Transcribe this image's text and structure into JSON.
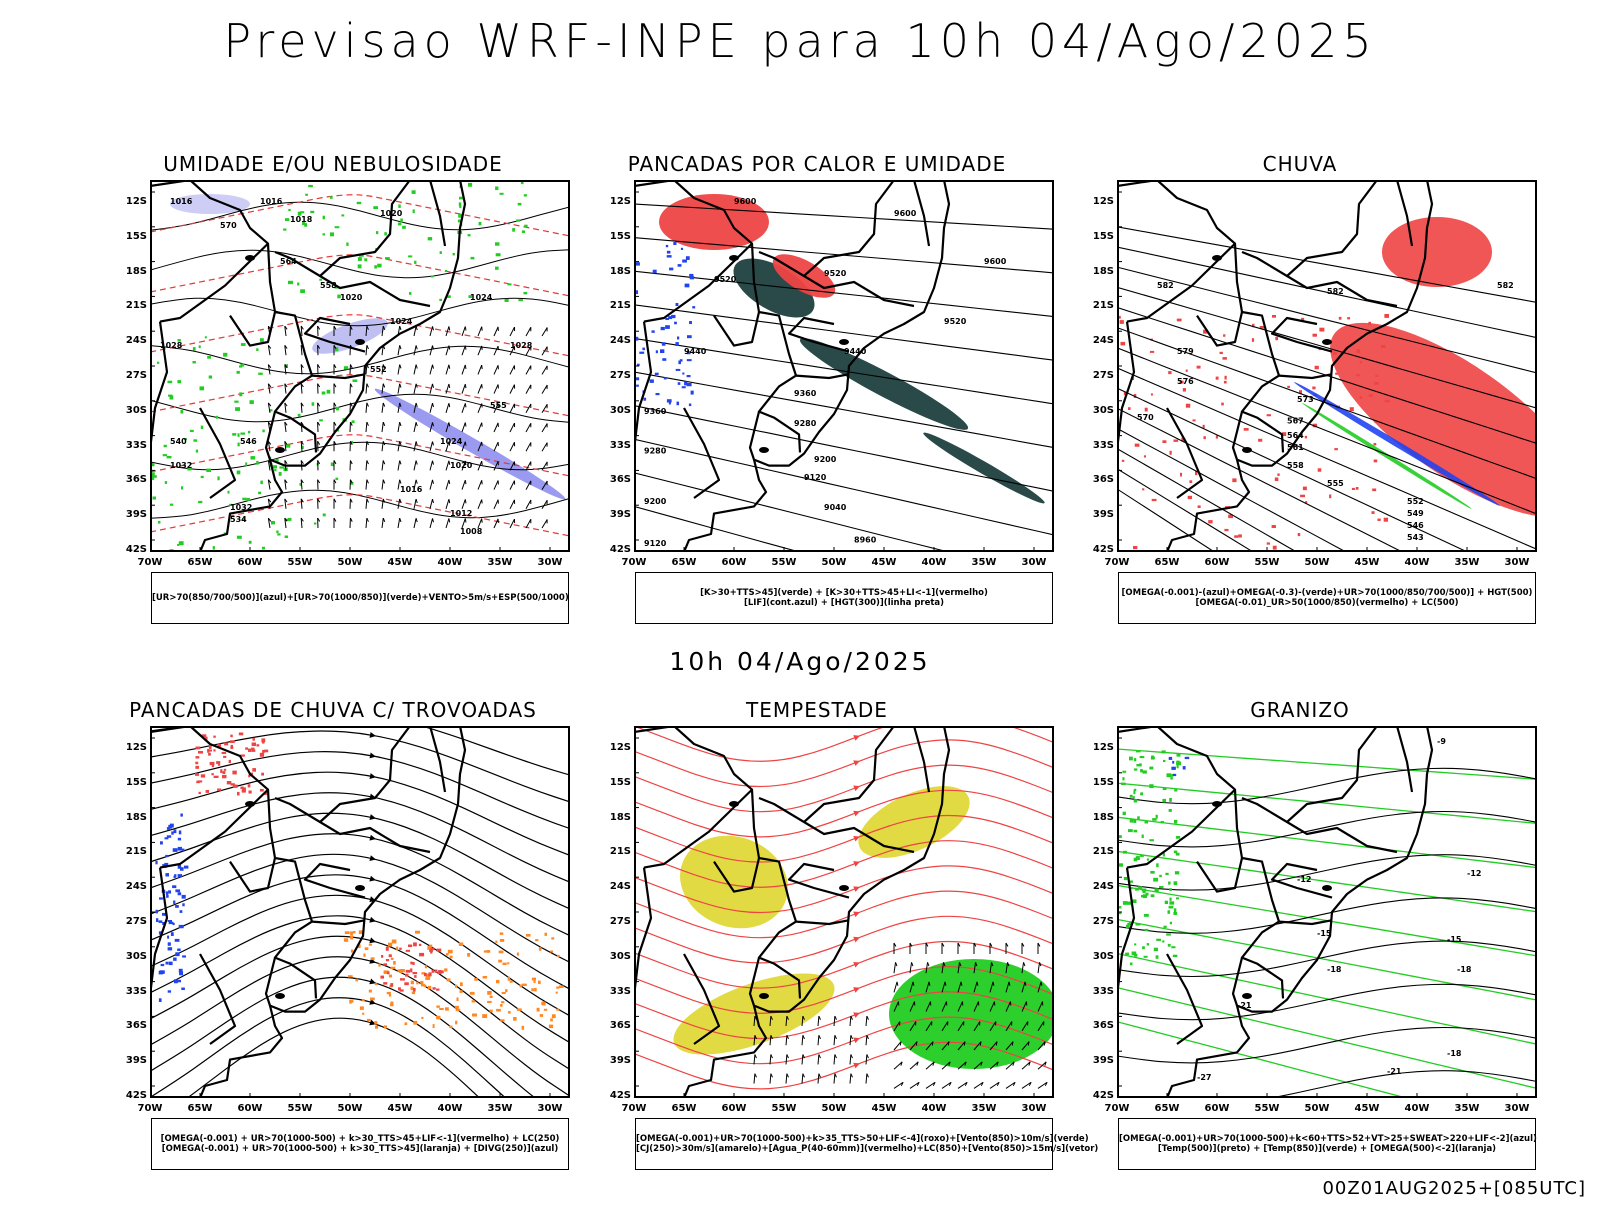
{
  "header": {
    "title": "Previsao WRF-INPE  para 10h 04/Ago/2025",
    "subtitle": "10h 04/Ago/2025",
    "run_label": "00Z01AUG2025+[085UTC]"
  },
  "axes": {
    "lat_labels": [
      "12S",
      "15S",
      "18S",
      "21S",
      "24S",
      "27S",
      "30S",
      "33S",
      "36S",
      "39S",
      "42S"
    ],
    "lon_labels": [
      "70W",
      "65W",
      "60W",
      "55W",
      "50W",
      "45W",
      "40W",
      "35W",
      "30W"
    ]
  },
  "panels": [
    {
      "id": "umidade",
      "title": "UMIDADE E/OU NEBULOSIDADE",
      "legend": [
        "[UR>70(850/700/500)](azul)+[UR>70(1000/850)](verde)+VENTO>5m/s+ESP(500/1000)"
      ],
      "contour_labels": [
        "1016",
        "1016",
        "1018",
        "1020",
        "1020",
        "1024",
        "1024",
        "1028",
        "1028",
        "1032",
        "1032",
        "1024",
        "1020",
        "1016",
        "1012",
        "1008",
        "570",
        "564",
        "558",
        "552",
        "546",
        "540",
        "534",
        "555"
      ]
    },
    {
      "id": "pancadas_calor",
      "title": "PANCADAS POR CALOR E UMIDADE",
      "legend": [
        "[K>30+TTS>45](verde) + [K>30+TTS>45+LI<-1](vermelho)",
        "[LIF](cont.azul) + [HGT(300)](linha preta)"
      ],
      "contour_labels": [
        "9600",
        "9600",
        "9600",
        "9520",
        "9520",
        "9520",
        "9440",
        "9440",
        "9360",
        "9360",
        "9280",
        "9280",
        "9200",
        "9200",
        "9120",
        "9120",
        "9040",
        "8960"
      ]
    },
    {
      "id": "chuva",
      "title": "CHUVA",
      "legend": [
        "[OMEGA(-0.001)-(azul)+OMEGA(-0.3)-(verde)+UR>70(1000/850/700/500)] + HGT(500)",
        "[OMEGA(-0.01)_UR>50(1000/850)(vermelho) + LC(500)"
      ],
      "contour_labels": [
        "582",
        "582",
        "582",
        "579",
        "576",
        "573",
        "570",
        "567",
        "564",
        "561",
        "558",
        "555",
        "552",
        "549",
        "546",
        "543"
      ]
    },
    {
      "id": "pancadas_trovoadas",
      "title": "PANCADAS DE CHUVA C/ TROVOADAS",
      "legend": [
        "[OMEGA(-0.001) + UR>70(1000-500) + k>30_TTS>45+LIF<-1](vermelho) + LC(250)",
        "[OMEGA(-0.001) + UR>70(1000-500) + k>30_TTS>45](laranja) + [DIVG(250)](azul)"
      ],
      "contour_labels": []
    },
    {
      "id": "tempestade",
      "title": "TEMPESTADE",
      "legend": [
        "[OMEGA(-0.001)+UR>70(1000-500)+k>35_TTS>50+LIF<-4](roxo)+[Vento(850)>10m/s](verde)",
        "[CJ(250)>30m/s](amarelo)+[Agua_P(40-60mm)](vermelho)+LC(850)+[Vento(850)>15m/s](vetor)"
      ],
      "contour_labels": []
    },
    {
      "id": "granizo",
      "title": "GRANIZO",
      "legend": [
        "[OMEGA(-0.001)+UR>70(1000-500)+k<60+TTS>52+VT>25+SWEAT>220+LIF<-2](azul)",
        "[Temp(500)](preto) + [Temp(850)](verde) + [OMEGA(500)<-2](laranja)"
      ],
      "contour_labels": [
        "-9",
        "-12",
        "-12",
        "-15",
        "-15",
        "-18",
        "-18",
        "-18",
        "-21",
        "-21",
        "-27"
      ]
    }
  ]
}
